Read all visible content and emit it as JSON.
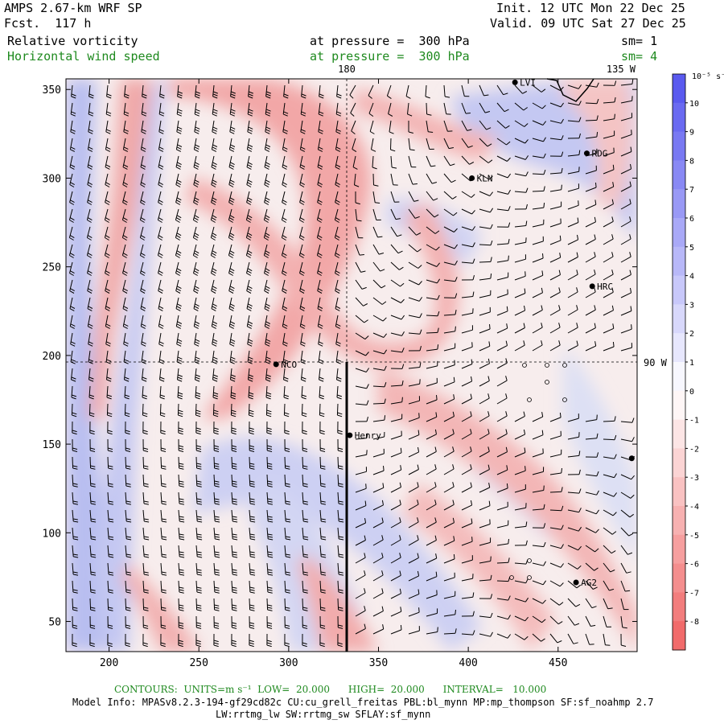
{
  "header": {
    "model_title": "AMPS 2.67-km WRF SP",
    "forecast": "Fcst.  117 h",
    "init": "Init. 12 UTC Mon 22 Dec 25",
    "valid": "Valid. 09 UTC Sat 27 Dec 25",
    "field1_name": "Relative vorticity",
    "field1_level": "at pressure =  300 hPa",
    "field1_sm": "sm= 1",
    "field2_name": "Horizontal wind speed",
    "field2_level": "at pressure =  300 hPa",
    "field2_sm": "sm= 4",
    "field2_color": "#1f8a1f"
  },
  "map": {
    "lon_labels": [
      "180",
      "135 W",
      "90 W"
    ],
    "stations": [
      {
        "name": "LVI",
        "x": 426,
        "y": 354
      },
      {
        "name": "RDG",
        "x": 466,
        "y": 314
      },
      {
        "name": "KLN",
        "x": 402,
        "y": 300
      },
      {
        "name": "HRC",
        "x": 469,
        "y": 239
      },
      {
        "name": "NCO",
        "x": 293,
        "y": 195
      },
      {
        "name": "Henry",
        "x": 334,
        "y": 155
      },
      {
        "name": "AG2",
        "x": 460,
        "y": 72
      },
      {
        "name": "",
        "x": 491,
        "y": 142
      }
    ],
    "x_axis_ticks": [
      200,
      250,
      300,
      350,
      400,
      450
    ],
    "y_axis_ticks": [
      50,
      100,
      150,
      200,
      250,
      300,
      350
    ],
    "xlim": [
      176,
      494
    ],
    "ylim": [
      33,
      356
    ]
  },
  "colorbar": {
    "unit_label": "10⁻⁵ s⁻¹",
    "levels": [
      "10",
      "9",
      "8",
      "7",
      "6",
      "5",
      "4",
      "3",
      "2",
      "1",
      "0",
      "-1",
      "-2",
      "-3",
      "-4",
      "-5",
      "-6",
      "-7",
      "-8"
    ],
    "positive_color": "#5a5aef",
    "negative_color": "#ef5a5a"
  },
  "footer": {
    "contours": "CONTOURS:  UNITS=m s⁻¹  LOW=  20.000      HIGH=  20.000      INTERVAL=   10.000",
    "model_info": "Model Info: MPASv8.2.3-194-gf29cd82c CU:cu_grell_freitas PBL:bl_mynn MP:mp_thompson SF:sf_noahmp 2.7",
    "model_info2": "LW:rrtmg_lw SW:rrtmg_sw SFLAY:sf_mynn"
  }
}
